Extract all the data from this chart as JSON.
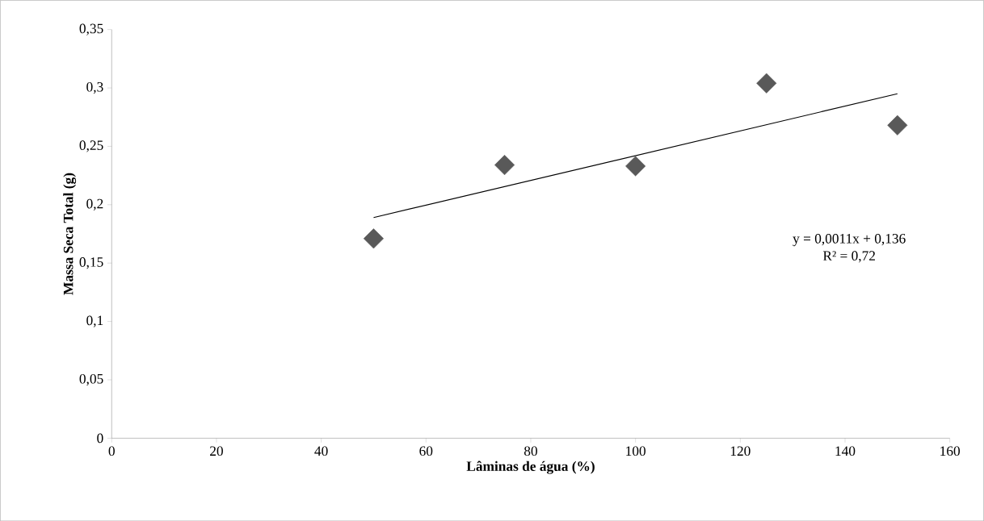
{
  "chart_data": {
    "type": "scatter",
    "xlabel": "Lâminas de água (%)",
    "ylabel": "Massa Seca Total (g)",
    "x": [
      50,
      75,
      100,
      125,
      150
    ],
    "series": [
      {
        "color": "#595959",
        "marker": "diamond",
        "values": [
          0.171,
          0.234,
          0.233,
          0.304,
          0.268
        ]
      },
      {
        "type": "line",
        "color": "#000000",
        "marker": "none",
        "line_style": "solid",
        "x": [
          50,
          150
        ],
        "values": [
          0.189,
          0.295
        ]
      }
    ],
    "xlim": [
      0,
      160
    ],
    "ylim": [
      0,
      0.35
    ],
    "xticks": [
      0,
      20,
      40,
      60,
      80,
      100,
      120,
      140,
      160
    ],
    "yticks": [
      0,
      {
        "value": 0.05,
        "label": "0,05"
      },
      {
        "value": 0.1,
        "label": "0,1"
      },
      {
        "value": 0.15,
        "label": "0,15"
      },
      {
        "value": 0.2,
        "label": "0,2"
      },
      {
        "value": 0.25,
        "label": "0,25"
      },
      {
        "value": 0.3,
        "label": "0,3"
      },
      {
        "value": 0.35,
        "label": "0,35"
      }
    ],
    "grid": false,
    "annotations": [
      "y = 0,0011x + 0,136",
      "R² = 0,72"
    ]
  }
}
